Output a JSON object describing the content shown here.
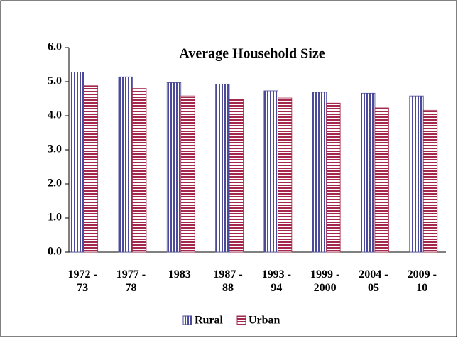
{
  "chart_data": {
    "type": "bar",
    "title": "Average Household Size",
    "categories": [
      "1972 - 73",
      "1977 - 78",
      "1983",
      "1987 - 88",
      "1993 - 94",
      "1999 - 2000",
      "2004 - 05",
      "2009 - 10"
    ],
    "series": [
      {
        "name": "Rural",
        "color": "#4b4b9a",
        "values": [
          5.28,
          5.14,
          4.97,
          4.93,
          4.73,
          4.69,
          4.66,
          4.58
        ]
      },
      {
        "name": "Urban",
        "color": "#a3284c",
        "values": [
          4.88,
          4.8,
          4.58,
          4.49,
          4.52,
          4.37,
          4.23,
          4.16
        ]
      }
    ],
    "ylim": [
      0,
      6
    ],
    "yticks": [
      {
        "value": 0,
        "label": "0.0"
      },
      {
        "value": 1,
        "label": "1.0"
      },
      {
        "value": 2,
        "label": "2.0"
      },
      {
        "value": 3,
        "label": "3.0"
      },
      {
        "value": 4,
        "label": "4.0"
      },
      {
        "value": 5,
        "label": "5.0"
      },
      {
        "value": 6,
        "label": "6.0"
      }
    ],
    "legend": "bottom"
  }
}
